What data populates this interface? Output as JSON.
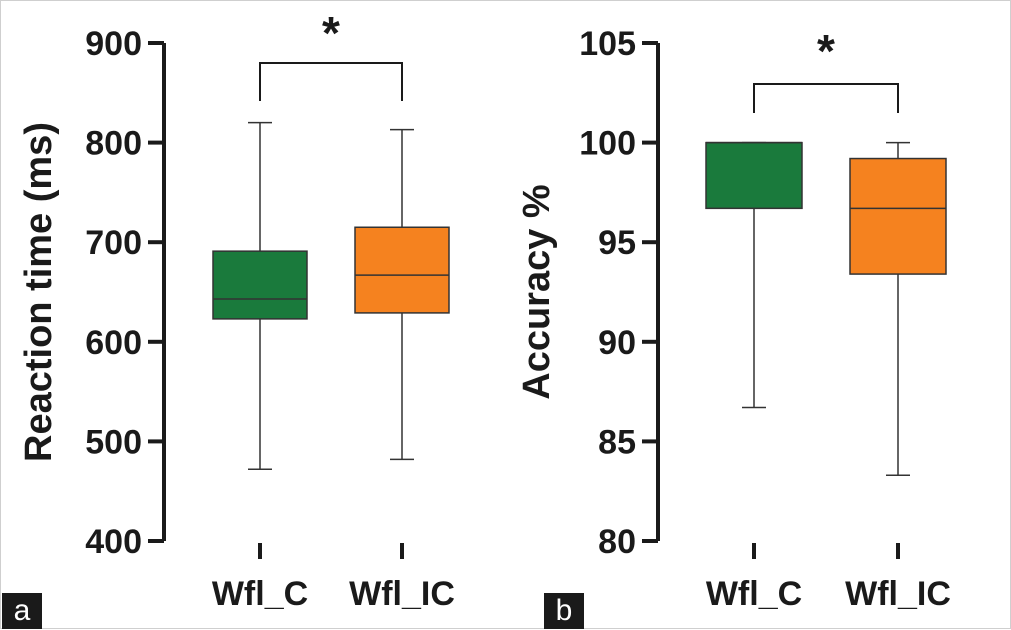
{
  "chart_data": [
    {
      "type": "box",
      "panel_label": "a",
      "ylabel": "Reaction time (ms)",
      "ylim": [
        400,
        900
      ],
      "yticks": [
        400,
        500,
        600,
        700,
        800,
        900
      ],
      "categories": [
        "Wfl_C",
        "Wfl_IC"
      ],
      "boxes": [
        {
          "category": "Wfl_C",
          "min": 472,
          "q1": 623,
          "median": 643,
          "q3": 691,
          "max": 820,
          "color": "#1a7a3c"
        },
        {
          "category": "Wfl_IC",
          "min": 482,
          "q1": 629,
          "median": 667,
          "q3": 715,
          "max": 813,
          "color": "#f5821f"
        }
      ],
      "significance": {
        "pair": [
          "Wfl_C",
          "Wfl_IC"
        ],
        "label": "*"
      },
      "grid": false
    },
    {
      "type": "box",
      "panel_label": "b",
      "ylabel": "Accuracy %",
      "ylim": [
        80,
        105
      ],
      "yticks": [
        80,
        85,
        90,
        95,
        100,
        105
      ],
      "categories": [
        "Wfl_C",
        "Wfl_IC"
      ],
      "boxes": [
        {
          "category": "Wfl_C",
          "min": 86.7,
          "q1": 96.7,
          "median": 100,
          "q3": 100,
          "max": 100,
          "color": "#1a7a3c"
        },
        {
          "category": "Wfl_IC",
          "min": 83.3,
          "q1": 93.4,
          "median": 96.7,
          "q3": 99.2,
          "max": 100,
          "color": "#f5821f"
        }
      ],
      "significance": {
        "pair": [
          "Wfl_C",
          "Wfl_IC"
        ],
        "label": "*"
      },
      "grid": false
    }
  ]
}
